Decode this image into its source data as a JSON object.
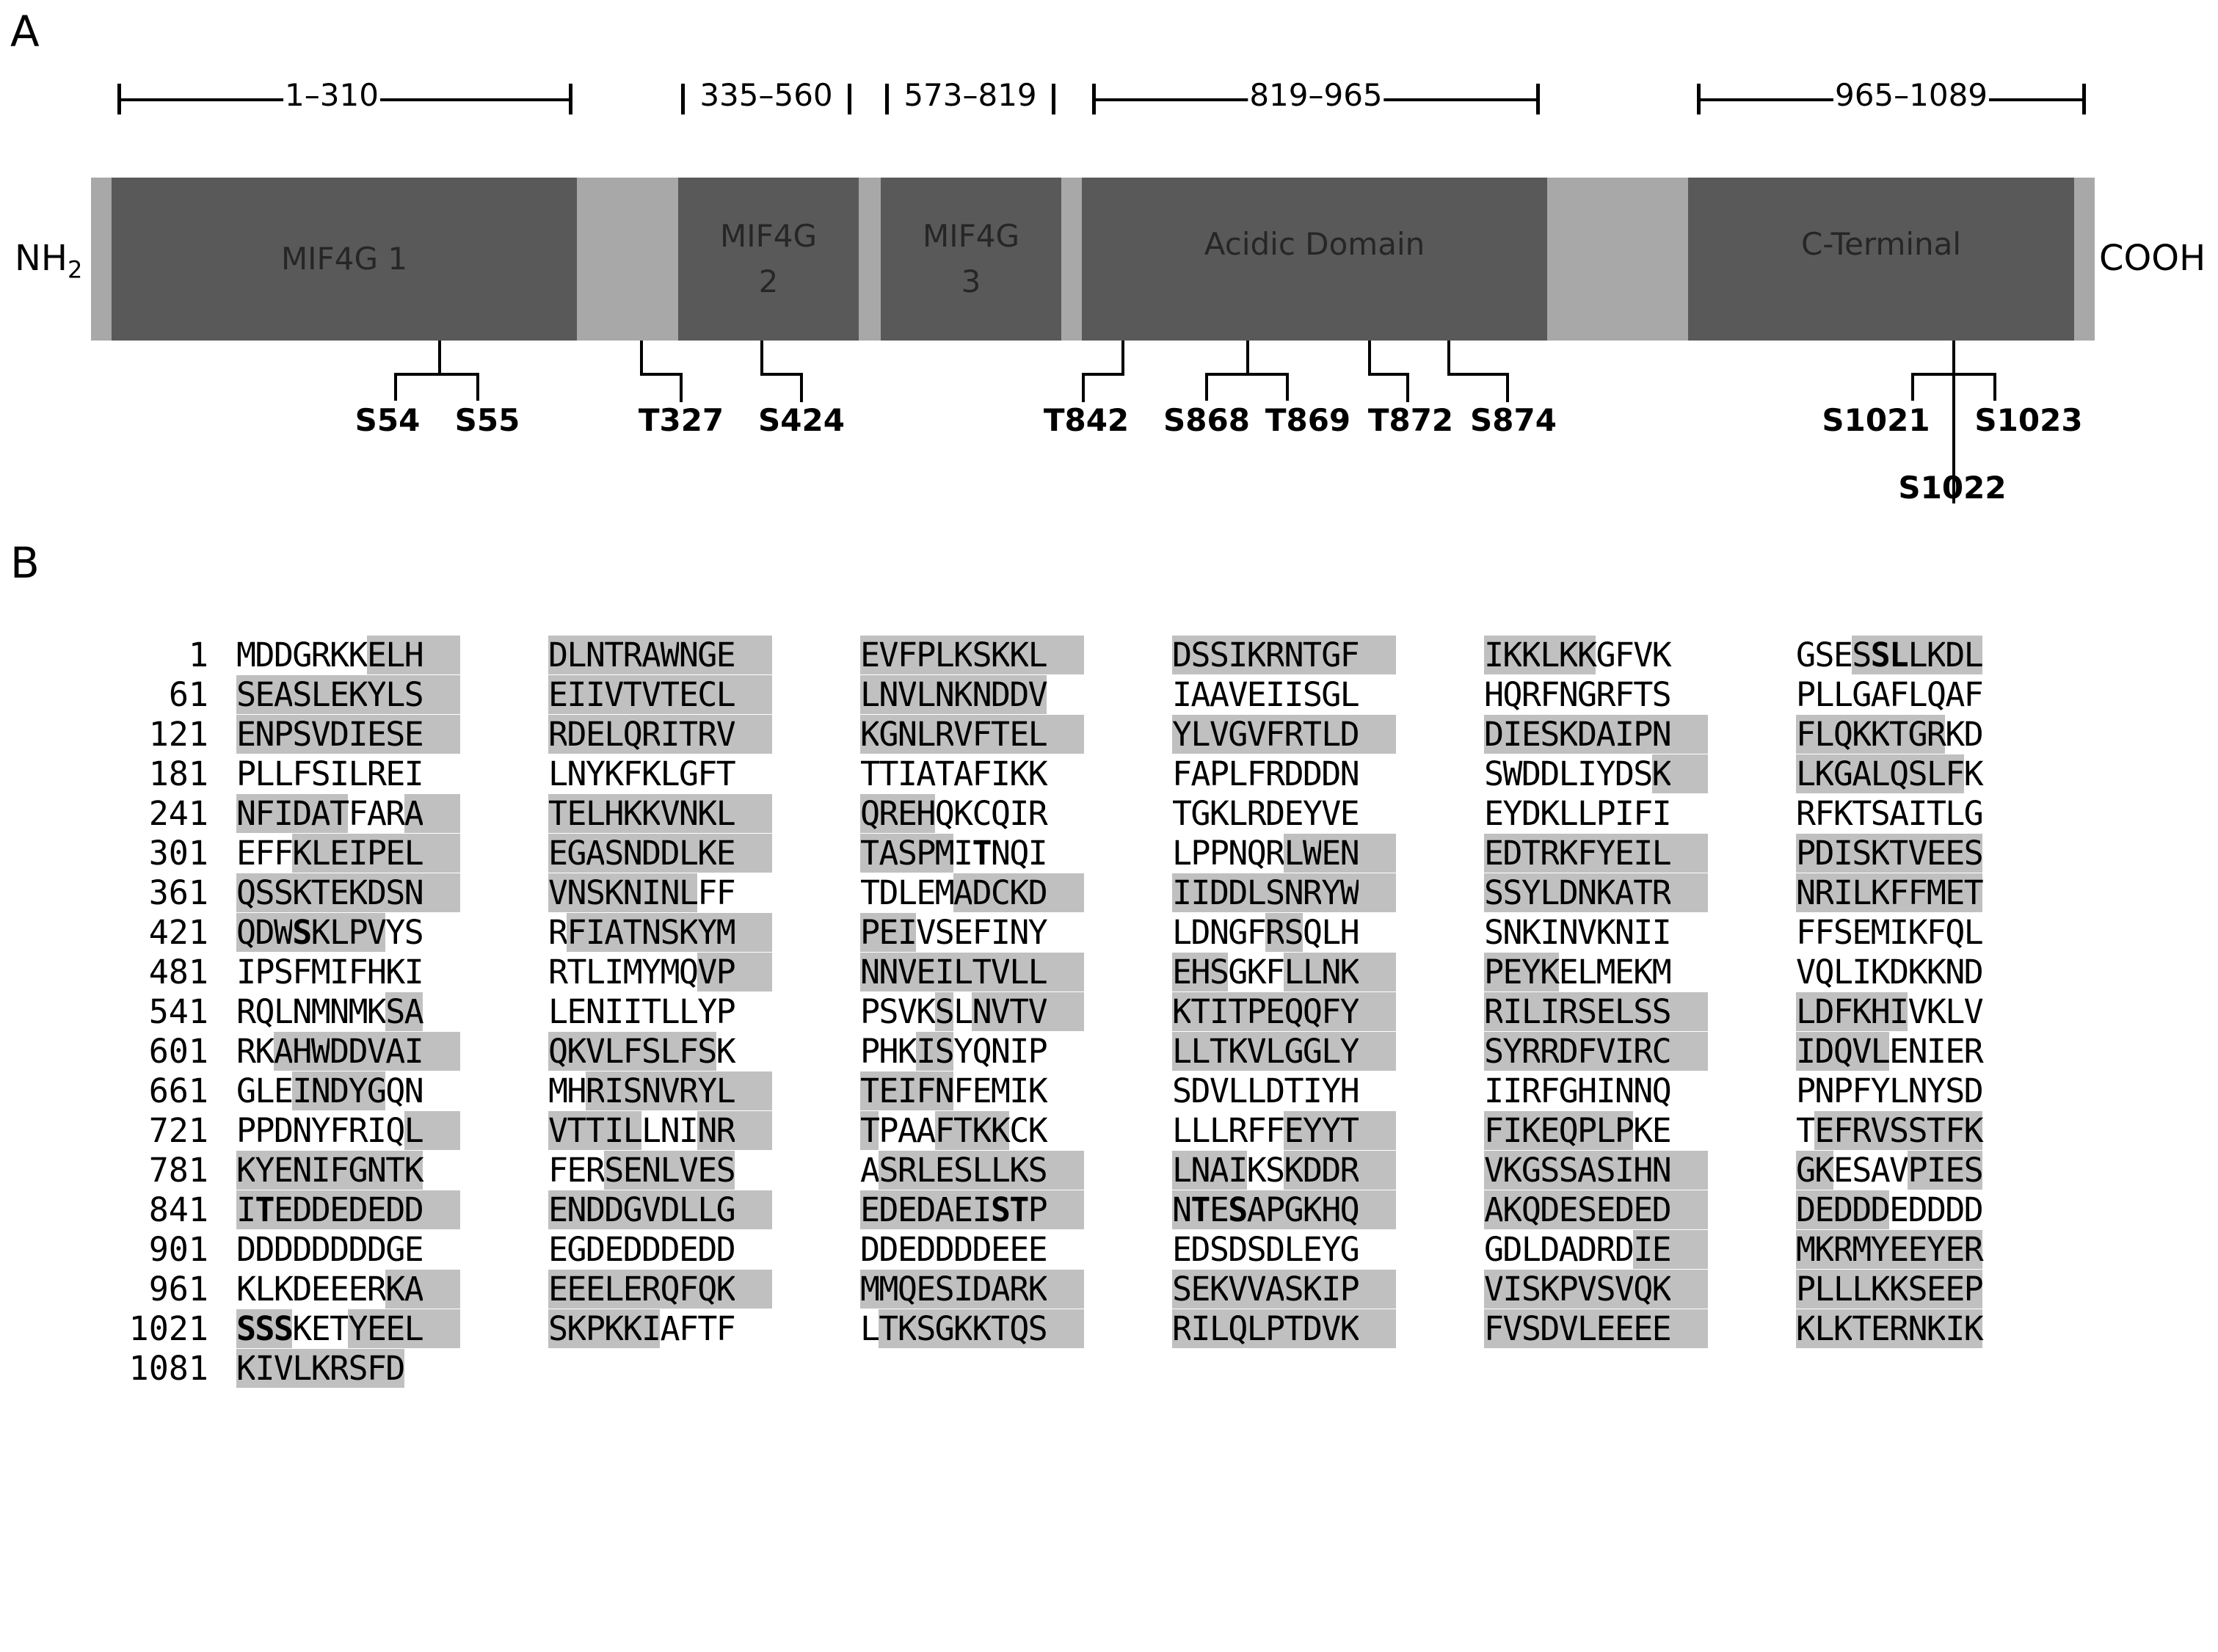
{
  "panel_a": {
    "label": "A",
    "n_term": "NH",
    "n_term_sub": "2",
    "c_term": "COOH",
    "ranges": [
      "1–310",
      "335–560",
      "573–819",
      "819–965",
      "965–1089"
    ],
    "domains": [
      {
        "line1": "MIF4G 1",
        "line2": ""
      },
      {
        "line1": "MIF4G",
        "line2": "2"
      },
      {
        "line1": "MIF4G",
        "line2": "3"
      },
      {
        "line1": "Acidic Domain",
        "line2": ""
      },
      {
        "line1": "C-Terminal",
        "line2": ""
      }
    ],
    "sites": [
      "S54",
      "S55",
      "T327",
      "S424",
      "T842",
      "S868",
      "T869",
      "T872",
      "S874",
      "S1021",
      "S1023",
      "S1022"
    ]
  },
  "panel_b": {
    "label": "B",
    "highlight_color": "#c0c0c0",
    "rows": [
      {
        "num": "1",
        "blocks": [
          "MDDGRKKELH",
          "DLNTRAWNGE",
          "EVFPLKSKKL",
          "DSSIKRNTGF",
          "IKKLKKGFVK",
          "GSESSLLKDL"
        ]
      },
      {
        "num": "61",
        "blocks": [
          "SEASLEKYLS",
          "EIIVTVTECL",
          "LNVLNKNDDV",
          "IAAVEIISGL",
          "HQRFNGRFTS",
          "PLLGAFLQAF"
        ]
      },
      {
        "num": "121",
        "blocks": [
          "ENPSVDIESE",
          "RDELQRITRV",
          "KGNLRVFTEL",
          "YLVGVFRTLD",
          "DIESKDAIPN",
          "FLQKKTGRKD"
        ]
      },
      {
        "num": "181",
        "blocks": [
          "PLLFSILREI",
          "LNYKFKLGFT",
          "TTIATAFIKK",
          "FAPLFRDDDN",
          "SWDDLIYDSK",
          "LKGALQSLFK"
        ]
      },
      {
        "num": "241",
        "blocks": [
          "NFIDATFARA",
          "TELHKKVNKL",
          "QREHQKCQIR",
          "TGKLRDEYVE",
          "EYDKLLPIFI",
          "RFKTSAITLG"
        ]
      },
      {
        "num": "301",
        "blocks": [
          "EFFKLEIPEL",
          "EGASNDDLKE",
          "TASPMITNQI",
          "LPPNQRLWEN",
          "EDTRKFYEIL",
          "PDISKTVEES"
        ]
      },
      {
        "num": "361",
        "blocks": [
          "QSSKTEKDSN",
          "VNSKNINLFF",
          "TDLEMADCKD",
          "IIDDLSNRYW",
          "SSYLDNKATR",
          "NRILKFFMET"
        ]
      },
      {
        "num": "421",
        "blocks": [
          "QDWSKLPVYS",
          "RFIATNSKYM",
          "PEIVSEFINY",
          "LDNGFRSQLH",
          "SNKINVKNII",
          "FFSEMIKFQL"
        ]
      },
      {
        "num": "481",
        "blocks": [
          "IPSFMIFHKI",
          "RTLIMYMQVP",
          "NNVEILTVLL",
          "EHSGKFLLNK",
          "PEYKELMEKM",
          "VQLIKDKKND"
        ]
      },
      {
        "num": "541",
        "blocks": [
          "RQLNMNMKSA",
          "LENIITLLYP",
          "PSVKSLNVTV",
          "KTITPEQQFY",
          "RILIRSELSS",
          "LDFKHIVKLV"
        ]
      },
      {
        "num": "601",
        "blocks": [
          "RKAHWDDVAI",
          "QKVLFSLFSK",
          "PHKISYQNIP",
          "LLTKVLGGLY",
          "SYRRDFVIRC",
          "IDQVLENIER"
        ]
      },
      {
        "num": "661",
        "blocks": [
          "GLEINDYGQN",
          "MHRISNVRYL",
          "TEIFNFEMIK",
          "SDVLLDTIYH",
          "IIRFGHINNQ",
          "PNPFYLNYSD"
        ]
      },
      {
        "num": "721",
        "blocks": [
          "PPDNYFRIQL",
          "VTTILLNINR",
          "TPAAFTKKCK",
          "LLLRFFEYYT",
          "FIKEQPLPKE",
          "TEFRVSSTFK"
        ]
      },
      {
        "num": "781",
        "blocks": [
          "KYENIFGNTK",
          "FERSENLVES",
          "ASRLESLLKS",
          "LNAIKSKDDR",
          "VKGSSASIHN",
          "GKESAVPIES"
        ]
      },
      {
        "num": "841",
        "blocks": [
          "ITEDDEDEDD",
          "ENDDGVDLLG",
          "EDEDAEISTP",
          "NTESAPGKHQ",
          "AKQDESEDED",
          "DEDDDEDDDD"
        ]
      },
      {
        "num": "901",
        "blocks": [
          "DDDDDDDDGE",
          "EGDEDDDEDD",
          "DDEDDDDEEE",
          "EDSDSDLEYG",
          "GDLDADRDIE",
          "MKRMYEEYER"
        ]
      },
      {
        "num": "961",
        "blocks": [
          "KLKDEEERKA",
          "EEELERQFQK",
          "MMQESIDARK",
          "SEKVVASKIP",
          "VISKPVSVQK",
          "PLLLKKSEEP"
        ]
      },
      {
        "num": "1021",
        "blocks": [
          "SSSKETYEEL",
          "SKPKKIAFTF",
          "LTKSGKKTQS",
          "RILQLPTDVK",
          "FVSDVLEEEE",
          "KLKTERNKIK"
        ]
      },
      {
        "num": "1081",
        "blocks": [
          "KIVLKRSFD"
        ]
      }
    ]
  }
}
